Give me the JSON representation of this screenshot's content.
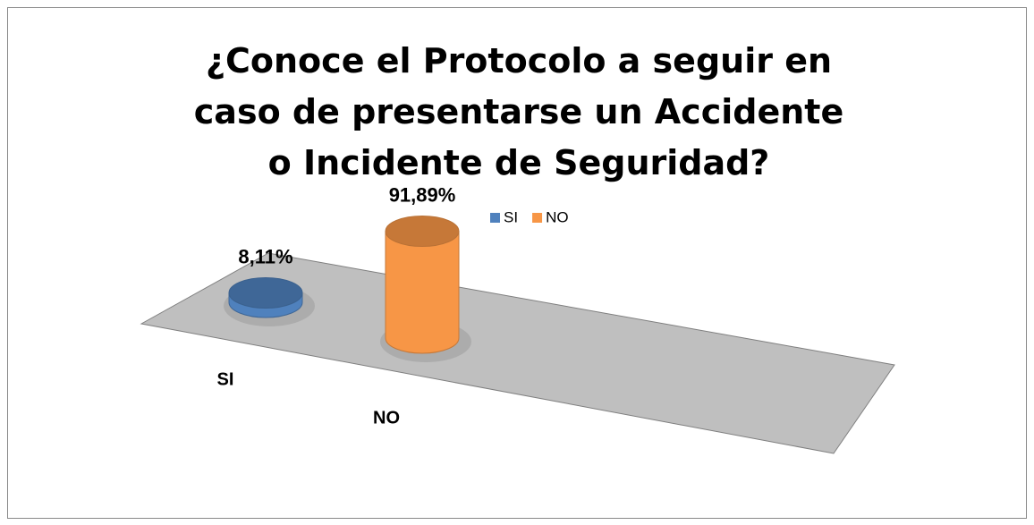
{
  "chart_data": {
    "type": "cylinder",
    "title": "¿Conoce el Protocolo a seguir en caso de presentarse un Accidente o Incidente de Seguridad?",
    "categories": [
      "SI",
      "NO"
    ],
    "values": [
      8.11,
      91.89
    ],
    "value_labels": [
      "8,11%",
      "91,89%"
    ],
    "colors": [
      "#4f81bd",
      "#f79646"
    ],
    "legend": "top"
  }
}
